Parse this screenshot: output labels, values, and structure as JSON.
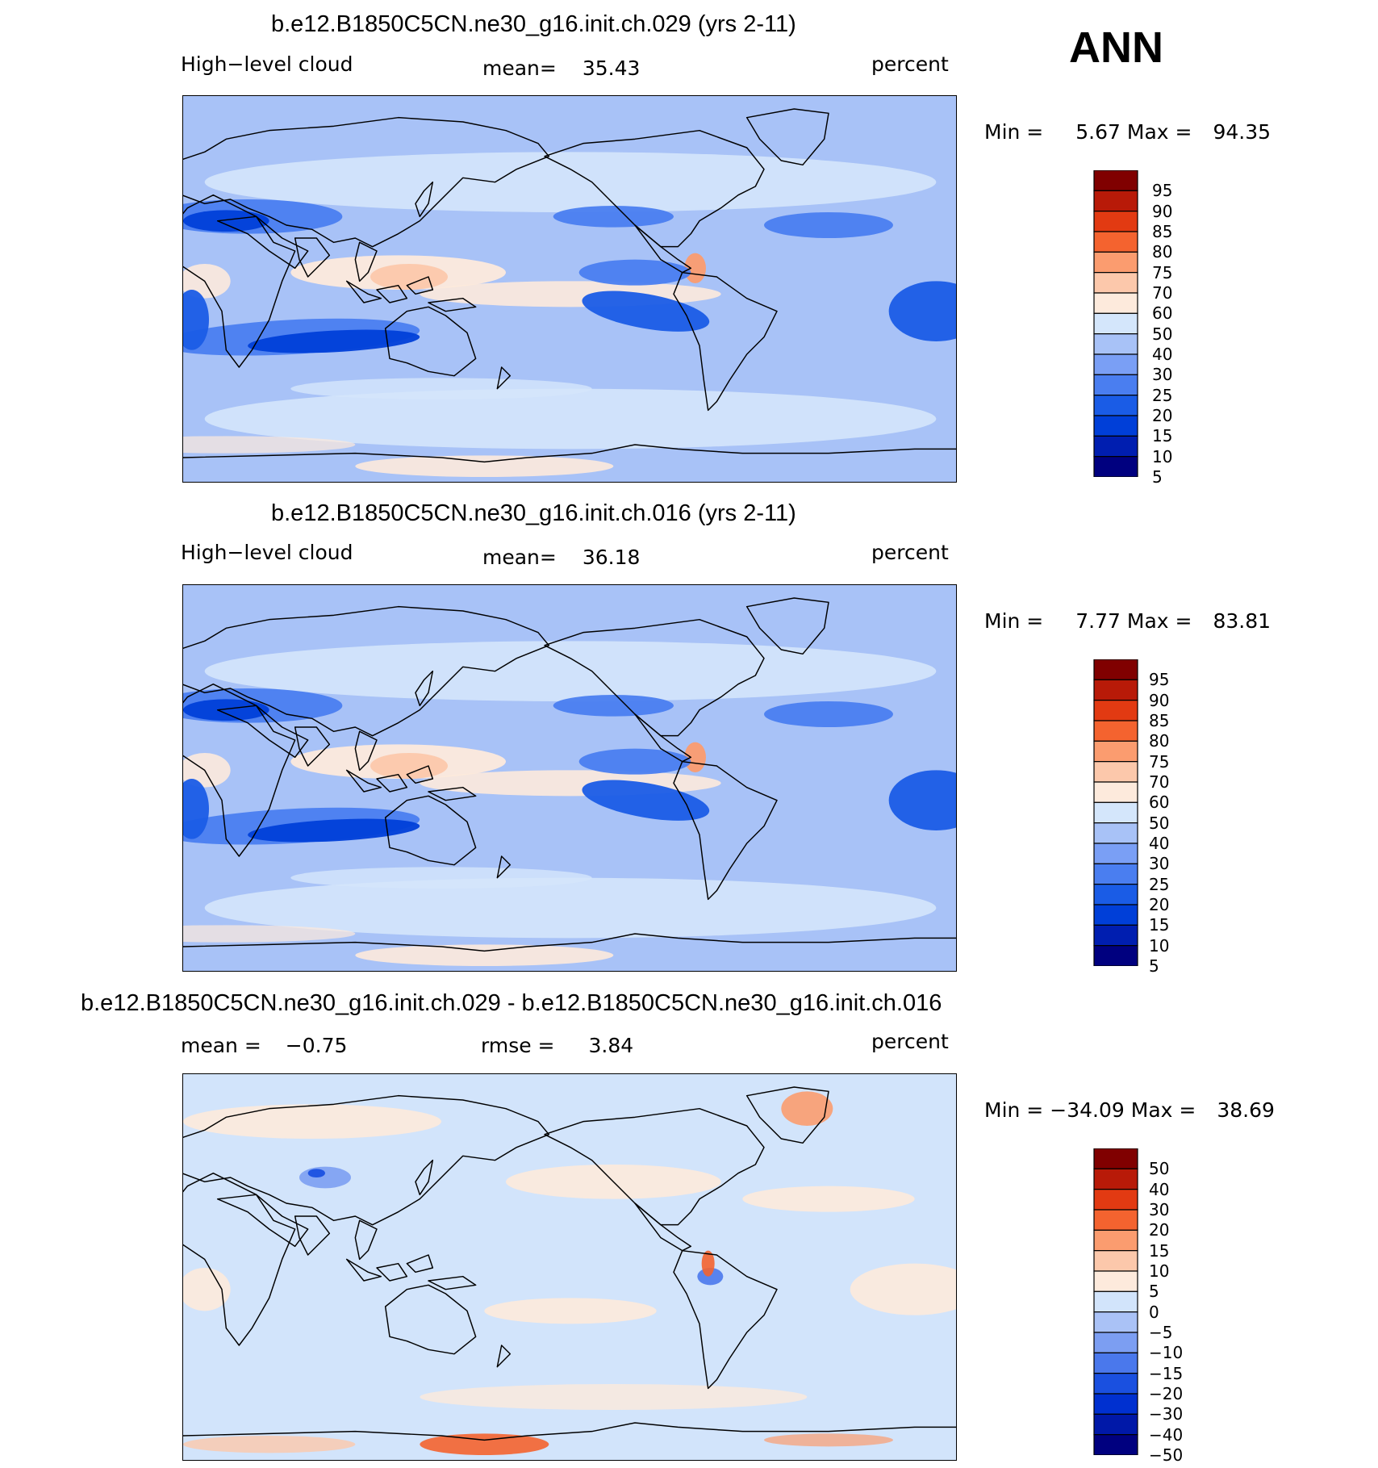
{
  "season": "ANN",
  "colors": {
    "abs_scale": [
      "#00007f",
      "#001eb0",
      "#003fd8",
      "#1a5ce6",
      "#4a7ef0",
      "#7a9ff5",
      "#a8c2f7",
      "#d4e6fb",
      "#fdeadc",
      "#fcc8ab",
      "#fb9c6f",
      "#f4632f",
      "#e23a12",
      "#b81a08",
      "#800000"
    ],
    "diff_scale": [
      "#00007f",
      "#0018a8",
      "#0030d0",
      "#1a50e0",
      "#4a78ec",
      "#7c9ef2",
      "#aac2f6",
      "#d2e4fb",
      "#fdeadc",
      "#fcc8ab",
      "#fb9c6f",
      "#f4632f",
      "#e23a12",
      "#b81a08",
      "#800000"
    ],
    "coast": "#000000"
  },
  "panels": [
    {
      "id": "case1",
      "title": "b.e12.B1850C5CN.ne30_g16.init.ch.029 (yrs 2-11)",
      "left_label": "High−level cloud",
      "mean_label": "mean=",
      "mean_value": "35.43",
      "units": "percent",
      "min_label": "Min =",
      "min_value": "5.67",
      "max_label": "Max =",
      "max_value": "94.35",
      "ticks": [
        "95",
        "90",
        "85",
        "80",
        "75",
        "70",
        "60",
        "50",
        "40",
        "30",
        "25",
        "20",
        "15",
        "10",
        "5"
      ]
    },
    {
      "id": "case2",
      "title": "b.e12.B1850C5CN.ne30_g16.init.ch.016 (yrs 2-11)",
      "left_label": "High−level cloud",
      "mean_label": "mean=",
      "mean_value": "36.18",
      "units": "percent",
      "min_label": "Min =",
      "min_value": "7.77",
      "max_label": "Max =",
      "max_value": "83.81",
      "ticks": [
        "95",
        "90",
        "85",
        "80",
        "75",
        "70",
        "60",
        "50",
        "40",
        "30",
        "25",
        "20",
        "15",
        "10",
        "5"
      ]
    },
    {
      "id": "diff",
      "title": "b.e12.B1850C5CN.ne30_g16.init.ch.029 - b.e12.B1850C5CN.ne30_g16.init.ch.016",
      "mean_label": "mean =",
      "mean_value": "−0.75",
      "rmse_label": "rmse =",
      "rmse_value": "3.84",
      "units": "percent",
      "min_label": "Min =",
      "min_value": "−34.09",
      "max_label": "Max =",
      "max_value": "38.69",
      "ticks": [
        "50",
        "40",
        "30",
        "20",
        "15",
        "10",
        "5",
        "0",
        "−5",
        "−10",
        "−15",
        "−20",
        "−30",
        "−40",
        "−50"
      ]
    }
  ]
}
